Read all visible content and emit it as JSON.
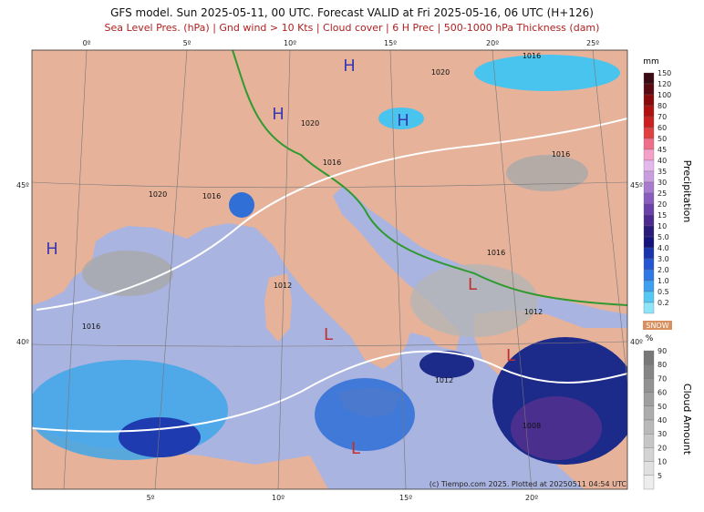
{
  "header": {
    "title": "GFS model. Sun 2025-05-11, 00 UTC. Forecast VALID at Fri 2025-05-16, 06 UTC (H+126)",
    "subtitle": "Sea Level Pres. (hPa) | Gnd wind > 10 Kts | Cloud cover | 6 H Prec | 500-1000 hPa Thickness (dam)"
  },
  "map": {
    "top_lon_labels": [
      "0º",
      "5º",
      "10º",
      "15º",
      "20º",
      "25º"
    ],
    "bottom_lon_labels": [
      "5º",
      "10º",
      "15º",
      "20º"
    ],
    "left_lat_labels": [
      "45º",
      "40º"
    ],
    "right_lat_labels": [
      "45º",
      "40º"
    ],
    "pressure_centers": [
      "H",
      "H",
      "H",
      "H",
      "L",
      "L",
      "L",
      "L"
    ],
    "isobar_labels": [
      "1020",
      "1016",
      "1020",
      "1016",
      "1020",
      "1016",
      "1016",
      "1016",
      "1012",
      "1012",
      "1016",
      "1012",
      "1008"
    ],
    "credit": "(c) Tiempo.com 2025. Plotted at 20250511 04:54 UTC"
  },
  "precipitation_legend": {
    "unit": "mm",
    "title": "Precipitation",
    "ticks": [
      "150",
      "120",
      "100",
      "80",
      "70",
      "60",
      "50",
      "45",
      "40",
      "35",
      "30",
      "25",
      "20",
      "15",
      "10",
      "5.0",
      "4.0",
      "3.0",
      "2.0",
      "1.0",
      "0.5",
      "0.2"
    ],
    "snow": "SNOW"
  },
  "cloud_legend": {
    "unit": "%",
    "title": "Cloud Amount",
    "ticks": [
      "90",
      "80",
      "70",
      "60",
      "50",
      "40",
      "30",
      "20",
      "10",
      "5"
    ]
  }
}
